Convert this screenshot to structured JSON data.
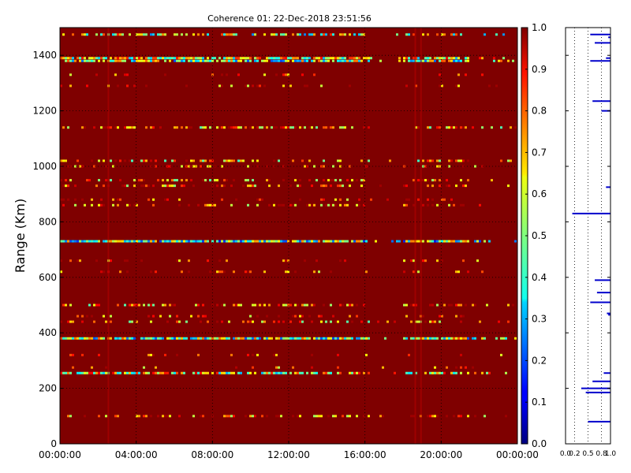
{
  "chart_data": [
    {
      "type": "heatmap",
      "title": "Coherence 01: 22-Dec-2018 23:51:56",
      "xlabel": "",
      "ylabel": "Range (Km)",
      "x_ticks": [
        "00:00:00",
        "04:00:00",
        "08:00:00",
        "12:00:00",
        "16:00:00",
        "20:00:00",
        "00:00:00"
      ],
      "x_range_hours": [
        0,
        24
      ],
      "y_ticks": [
        0,
        200,
        400,
        600,
        800,
        1000,
        1200,
        1400
      ],
      "ylim": [
        0,
        1500
      ],
      "grid": true,
      "colorbar": {
        "colormap": "jet",
        "range": [
          0.0,
          1.0
        ],
        "ticks": [
          "0.0",
          "0.1",
          "0.2",
          "0.3",
          "0.4",
          "0.5",
          "0.6",
          "0.7",
          "0.8",
          "0.9",
          "1.0"
        ]
      },
      "background_value": 1.0,
      "low_coherence_bands": [
        {
          "range_km": 1475,
          "mean_value": 0.55,
          "density": 0.55
        },
        {
          "range_km": 1390,
          "mean_value": 0.6,
          "density": 0.85
        },
        {
          "range_km": 1380,
          "mean_value": 0.5,
          "density": 0.8
        },
        {
          "range_km": 1330,
          "mean_value": 0.85,
          "density": 0.12
        },
        {
          "range_km": 1290,
          "mean_value": 0.85,
          "density": 0.15
        },
        {
          "range_km": 1140,
          "mean_value": 0.75,
          "density": 0.6
        },
        {
          "range_km": 1020,
          "mean_value": 0.72,
          "density": 0.45
        },
        {
          "range_km": 1000,
          "mean_value": 0.82,
          "density": 0.3
        },
        {
          "range_km": 950,
          "mean_value": 0.75,
          "density": 0.4
        },
        {
          "range_km": 930,
          "mean_value": 0.75,
          "density": 0.4
        },
        {
          "range_km": 880,
          "mean_value": 0.85,
          "density": 0.2
        },
        {
          "range_km": 860,
          "mean_value": 0.8,
          "density": 0.35
        },
        {
          "range_km": 730,
          "mean_value": 0.45,
          "density": 0.95
        },
        {
          "range_km": 660,
          "mean_value": 0.85,
          "density": 0.2
        },
        {
          "range_km": 620,
          "mean_value": 0.85,
          "density": 0.15
        },
        {
          "range_km": 500,
          "mean_value": 0.75,
          "density": 0.45
        },
        {
          "range_km": 460,
          "mean_value": 0.85,
          "density": 0.2
        },
        {
          "range_km": 440,
          "mean_value": 0.75,
          "density": 0.4
        },
        {
          "range_km": 380,
          "mean_value": 0.5,
          "density": 0.95
        },
        {
          "range_km": 320,
          "mean_value": 0.85,
          "density": 0.1
        },
        {
          "range_km": 275,
          "mean_value": 0.85,
          "density": 0.12
        },
        {
          "range_km": 255,
          "mean_value": 0.6,
          "density": 0.75
        },
        {
          "range_km": 100,
          "mean_value": 0.82,
          "density": 0.35
        }
      ],
      "vertical_artifacts_hours": [
        2.5,
        18.6,
        18.9
      ]
    },
    {
      "type": "line",
      "title": "",
      "x_ticks": [
        "0.0",
        "0.2",
        "0.5",
        "0.8",
        "1.0"
      ],
      "xlim": [
        0,
        1.0
      ],
      "ylim": [
        0,
        1500
      ],
      "grid": "vertical-dotted",
      "color": "#0000cc",
      "bars": [
        {
          "range_km": 1475,
          "min_value": 0.55
        },
        {
          "range_km": 1465,
          "min_value": 0.95
        },
        {
          "range_km": 1445,
          "min_value": 0.65
        },
        {
          "range_km": 1390,
          "min_value": 0.9
        },
        {
          "range_km": 1380,
          "min_value": 0.55
        },
        {
          "range_km": 1235,
          "min_value": 0.6
        },
        {
          "range_km": 1200,
          "min_value": 0.8
        },
        {
          "range_km": 925,
          "min_value": 0.9
        },
        {
          "range_km": 830,
          "min_value": 0.15
        },
        {
          "range_km": 590,
          "min_value": 0.65
        },
        {
          "range_km": 545,
          "min_value": 0.7
        },
        {
          "range_km": 510,
          "min_value": 0.55
        },
        {
          "range_km": 470,
          "min_value": 0.92
        },
        {
          "range_km": 465,
          "min_value": 0.95
        },
        {
          "range_km": 255,
          "min_value": 0.85
        },
        {
          "range_km": 225,
          "min_value": 0.6
        },
        {
          "range_km": 200,
          "min_value": 0.35
        },
        {
          "range_km": 185,
          "min_value": 0.45
        },
        {
          "range_km": 80,
          "min_value": 0.5
        }
      ]
    }
  ]
}
